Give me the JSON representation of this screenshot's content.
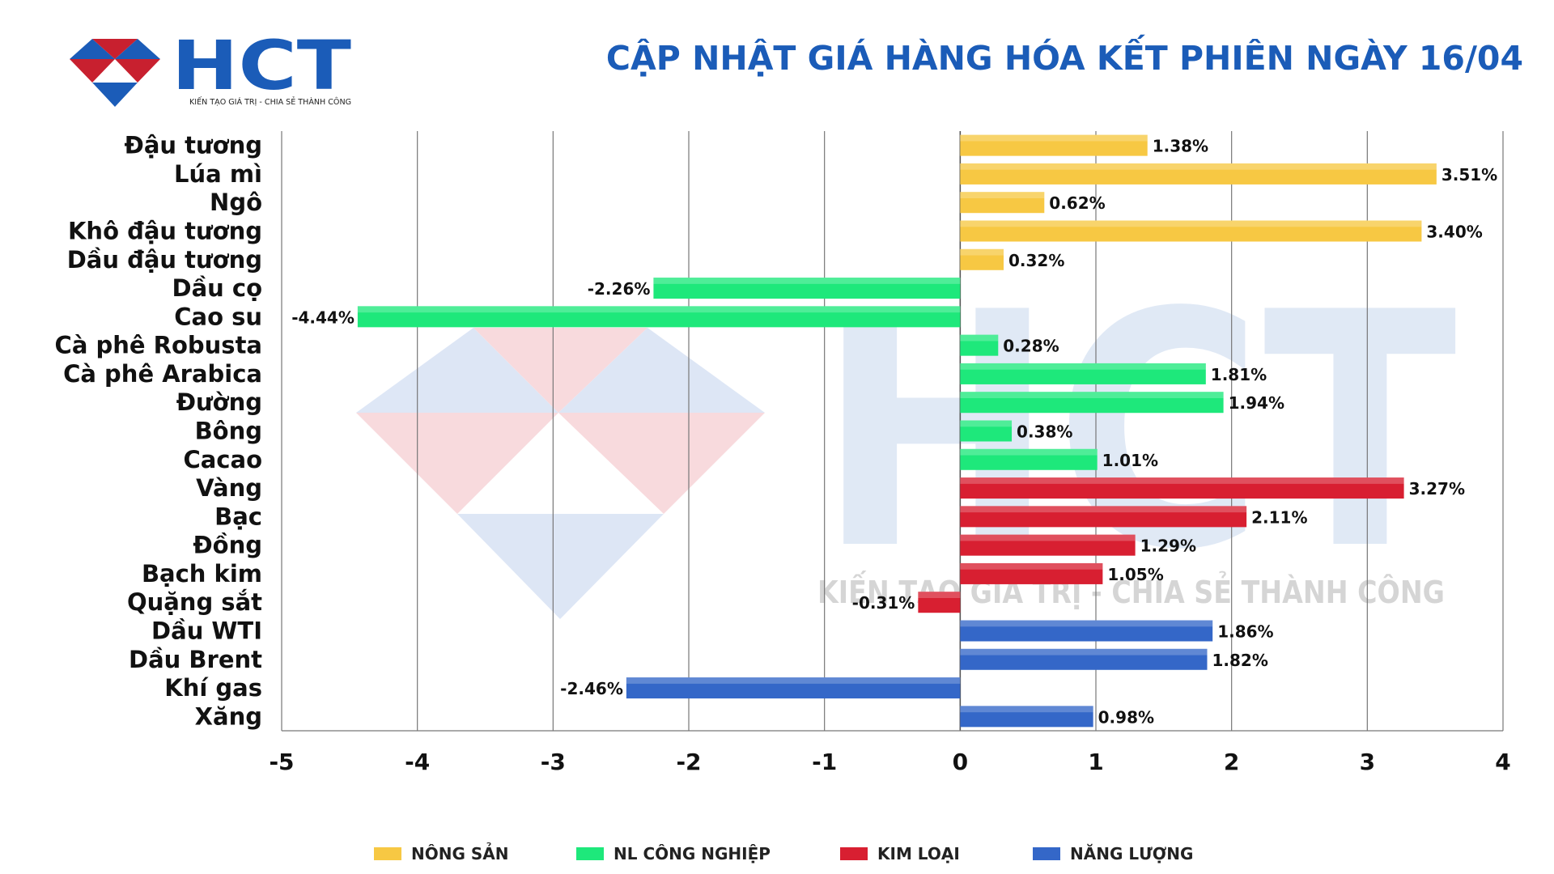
{
  "logo": {
    "text": "HCT",
    "tagline": "KIẾN TẠO GIÁ TRỊ - CHIA SẺ THÀNH CÔNG"
  },
  "header": {
    "title": "CẬP NHẬT GIÁ HÀNG HÓA KẾT PHIÊN NGÀY 16/04"
  },
  "watermark": {
    "text": "HCT",
    "tagline": "KIẾN TẠO GIÁ TRỊ - CHIA SẺ THÀNH CÔNG"
  },
  "colors": {
    "title": "#1b5cb8",
    "nong_san": "#f7c843",
    "nl_cong_nghiep": "#1ee87b",
    "kim_loai": "#d81f31",
    "nang_luong": "#3467c8",
    "logo_blue": "#1b5cb8",
    "logo_red": "#c8202f"
  },
  "chart_data": {
    "type": "bar",
    "orientation": "horizontal",
    "title": "CẬP NHẬT GIÁ HÀNG HÓA KẾT PHIÊN NGÀY 16/04",
    "xlim": [
      -5,
      4
    ],
    "xticks": [
      -5,
      -4,
      -3,
      -2,
      -1,
      0,
      1,
      2,
      3,
      4
    ],
    "grid": "vertical",
    "legend_position": "bottom",
    "groups": [
      {
        "key": "nong_san",
        "name": "NÔNG SẢN"
      },
      {
        "key": "nl_cong_nghiep",
        "name": "NL CÔNG NGHIỆP"
      },
      {
        "key": "kim_loai",
        "name": "KIM LOẠI"
      },
      {
        "key": "nang_luong",
        "name": "NĂNG LƯỢNG"
      }
    ],
    "categories": [
      {
        "label": "Đậu tương",
        "value": 1.38,
        "text": "1.38%",
        "group": "nong_san"
      },
      {
        "label": "Lúa mì",
        "value": 3.51,
        "text": "3.51%",
        "group": "nong_san"
      },
      {
        "label": "Ngô",
        "value": 0.62,
        "text": "0.62%",
        "group": "nong_san"
      },
      {
        "label": "Khô đậu tương",
        "value": 3.4,
        "text": "3.40%",
        "group": "nong_san"
      },
      {
        "label": "Dầu đậu tương",
        "value": 0.32,
        "text": "0.32%",
        "group": "nong_san"
      },
      {
        "label": "Dầu cọ",
        "value": -2.26,
        "text": "-2.26%",
        "group": "nl_cong_nghiep"
      },
      {
        "label": "Cao su",
        "value": -4.44,
        "text": "-4.44%",
        "group": "nl_cong_nghiep"
      },
      {
        "label": "Cà phê Robusta",
        "value": 0.28,
        "text": "0.28%",
        "group": "nl_cong_nghiep"
      },
      {
        "label": "Cà phê Arabica",
        "value": 1.81,
        "text": "1.81%",
        "group": "nl_cong_nghiep"
      },
      {
        "label": "Đường",
        "value": 1.94,
        "text": "1.94%",
        "group": "nl_cong_nghiep"
      },
      {
        "label": "Bông",
        "value": 0.38,
        "text": "0.38%",
        "group": "nl_cong_nghiep"
      },
      {
        "label": "Cacao",
        "value": 1.01,
        "text": "1.01%",
        "group": "nl_cong_nghiep"
      },
      {
        "label": "Vàng",
        "value": 3.27,
        "text": "3.27%",
        "group": "kim_loai"
      },
      {
        "label": "Bạc",
        "value": 2.11,
        "text": "2.11%",
        "group": "kim_loai"
      },
      {
        "label": "Đồng",
        "value": 1.29,
        "text": "1.29%",
        "group": "kim_loai"
      },
      {
        "label": "Bạch kim",
        "value": 1.05,
        "text": "1.05%",
        "group": "kim_loai"
      },
      {
        "label": "Quặng sắt",
        "value": -0.31,
        "text": "-0.31%",
        "group": "kim_loai"
      },
      {
        "label": "Dầu WTI",
        "value": 1.86,
        "text": "1.86%",
        "group": "nang_luong"
      },
      {
        "label": "Dầu Brent",
        "value": 1.82,
        "text": "1.82%",
        "group": "nang_luong"
      },
      {
        "label": "Khí gas",
        "value": -2.46,
        "text": "-2.46%",
        "group": "nang_luong"
      },
      {
        "label": "Xăng",
        "value": 0.98,
        "text": "0.98%",
        "group": "nang_luong"
      }
    ]
  }
}
